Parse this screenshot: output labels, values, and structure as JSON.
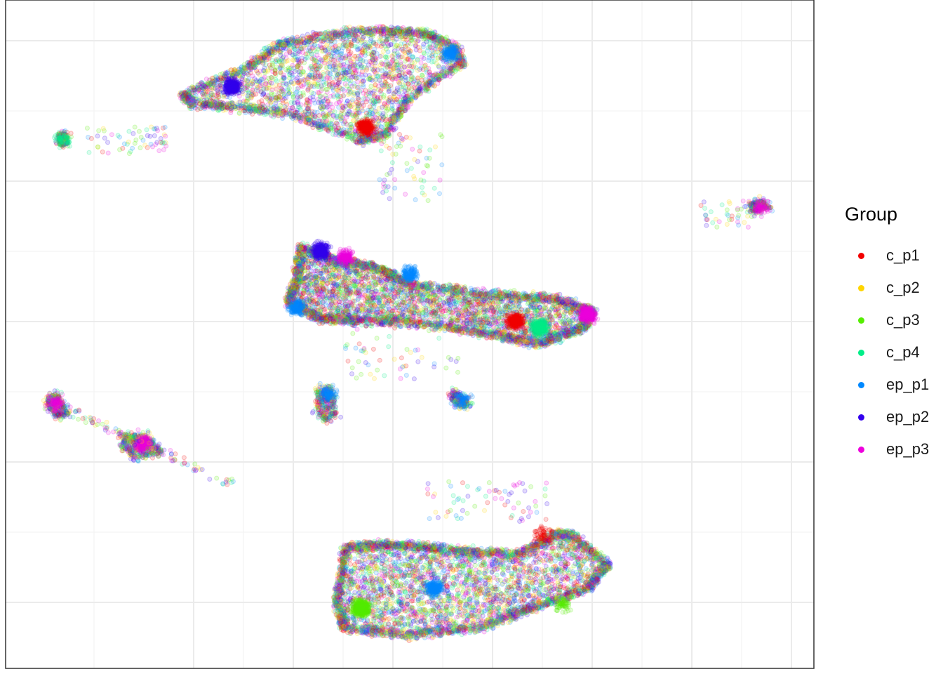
{
  "chart_data": {
    "type": "scatter",
    "title": "",
    "xlabel": "",
    "ylabel": "",
    "grid": true,
    "legend": {
      "title": "Group",
      "placement": "right",
      "items": [
        {
          "label": "c_p1",
          "color": "#f20000"
        },
        {
          "label": "c_p2",
          "color": "#ffd500"
        },
        {
          "label": "c_p3",
          "color": "#55ee00"
        },
        {
          "label": "c_p4",
          "color": "#00ee88"
        },
        {
          "label": "ep_p1",
          "color": "#0088ff"
        },
        {
          "label": "ep_p2",
          "color": "#3300ee"
        },
        {
          "label": "ep_p3",
          "color": "#ee00dd"
        }
      ]
    },
    "xlim": [
      0,
      1
    ],
    "ylim": [
      0,
      1
    ],
    "point_alpha": 0.15,
    "clusters": [
      {
        "id": "top-cluster",
        "poly": [
          [
            0.22,
            0.86
          ],
          [
            0.3,
            0.9
          ],
          [
            0.34,
            0.935
          ],
          [
            0.41,
            0.95
          ],
          [
            0.47,
            0.955
          ],
          [
            0.52,
            0.95
          ],
          [
            0.555,
            0.93
          ],
          [
            0.565,
            0.905
          ],
          [
            0.5,
            0.855
          ],
          [
            0.47,
            0.8
          ],
          [
            0.44,
            0.79
          ],
          [
            0.35,
            0.83
          ],
          [
            0.28,
            0.84
          ],
          [
            0.23,
            0.845
          ]
        ],
        "n": 2000,
        "sub": [
          {
            "x": 0.28,
            "y": 0.87,
            "color": 5,
            "n": 300
          },
          {
            "x": 0.445,
            "y": 0.81,
            "color": 0,
            "n": 250
          },
          {
            "x": 0.55,
            "y": 0.92,
            "color": 4,
            "n": 150
          }
        ]
      },
      {
        "id": "small-left-top",
        "poly": [
          [
            0.065,
            0.8
          ],
          [
            0.075,
            0.8
          ],
          [
            0.077,
            0.785
          ],
          [
            0.067,
            0.782
          ]
        ],
        "n": 120,
        "sub": [
          {
            "x": 0.07,
            "y": 0.79,
            "color": 3,
            "n": 60
          }
        ]
      },
      {
        "id": "small-right",
        "poly": [
          [
            0.92,
            0.695
          ],
          [
            0.935,
            0.7
          ],
          [
            0.945,
            0.69
          ],
          [
            0.925,
            0.682
          ]
        ],
        "n": 180,
        "sub": [
          {
            "x": 0.935,
            "y": 0.69,
            "color": 6,
            "n": 60
          }
        ]
      },
      {
        "id": "middle-cluster",
        "poly": [
          [
            0.365,
            0.63
          ],
          [
            0.41,
            0.61
          ],
          [
            0.46,
            0.6
          ],
          [
            0.5,
            0.575
          ],
          [
            0.6,
            0.56
          ],
          [
            0.68,
            0.553
          ],
          [
            0.725,
            0.535
          ],
          [
            0.715,
            0.51
          ],
          [
            0.66,
            0.485
          ],
          [
            0.6,
            0.5
          ],
          [
            0.5,
            0.518
          ],
          [
            0.43,
            0.52
          ],
          [
            0.385,
            0.525
          ],
          [
            0.35,
            0.55
          ],
          [
            0.36,
            0.58
          ]
        ],
        "n": 2800,
        "sub": [
          {
            "x": 0.39,
            "y": 0.625,
            "color": 5,
            "n": 300
          },
          {
            "x": 0.42,
            "y": 0.615,
            "color": 6,
            "n": 150
          },
          {
            "x": 0.63,
            "y": 0.52,
            "color": 0,
            "n": 250
          },
          {
            "x": 0.66,
            "y": 0.51,
            "color": 3,
            "n": 300
          },
          {
            "x": 0.72,
            "y": 0.53,
            "color": 6,
            "n": 250
          },
          {
            "x": 0.36,
            "y": 0.54,
            "color": 4,
            "n": 150
          },
          {
            "x": 0.5,
            "y": 0.59,
            "color": 4,
            "n": 150
          }
        ]
      },
      {
        "id": "middle-small-a",
        "poly": [
          [
            0.385,
            0.42
          ],
          [
            0.405,
            0.418
          ],
          [
            0.41,
            0.38
          ],
          [
            0.395,
            0.37
          ],
          [
            0.385,
            0.385
          ]
        ],
        "n": 220,
        "sub": [
          {
            "x": 0.398,
            "y": 0.41,
            "color": 4,
            "n": 90
          }
        ]
      },
      {
        "id": "middle-small-b",
        "poly": [
          [
            0.552,
            0.415
          ],
          [
            0.563,
            0.41
          ],
          [
            0.575,
            0.395
          ],
          [
            0.565,
            0.39
          ],
          [
            0.552,
            0.4
          ]
        ],
        "n": 150,
        "sub": [
          {
            "x": 0.565,
            "y": 0.4,
            "color": 4,
            "n": 60
          }
        ]
      },
      {
        "id": "left-cluster-a",
        "poly": [
          [
            0.052,
            0.408
          ],
          [
            0.065,
            0.41
          ],
          [
            0.078,
            0.38
          ],
          [
            0.064,
            0.376
          ],
          [
            0.052,
            0.392
          ]
        ],
        "n": 200,
        "sub": [
          {
            "x": 0.062,
            "y": 0.395,
            "color": 6,
            "n": 80
          }
        ]
      },
      {
        "id": "left-cluster-b",
        "poly": [
          [
            0.145,
            0.352
          ],
          [
            0.175,
            0.348
          ],
          [
            0.195,
            0.322
          ],
          [
            0.16,
            0.315
          ],
          [
            0.145,
            0.33
          ]
        ],
        "n": 320,
        "sub": [
          {
            "x": 0.17,
            "y": 0.335,
            "color": 6,
            "n": 130
          }
        ]
      },
      {
        "id": "bottom-cluster",
        "poly": [
          [
            0.42,
            0.18
          ],
          [
            0.46,
            0.185
          ],
          [
            0.51,
            0.183
          ],
          [
            0.57,
            0.175
          ],
          [
            0.635,
            0.17
          ],
          [
            0.68,
            0.2
          ],
          [
            0.7,
            0.2
          ],
          [
            0.745,
            0.155
          ],
          [
            0.72,
            0.12
          ],
          [
            0.65,
            0.09
          ],
          [
            0.59,
            0.062
          ],
          [
            0.5,
            0.05
          ],
          [
            0.42,
            0.06
          ],
          [
            0.41,
            0.1
          ]
        ],
        "n": 2600,
        "sub": [
          {
            "x": 0.44,
            "y": 0.09,
            "color": 2,
            "n": 400
          },
          {
            "x": 0.665,
            "y": 0.2,
            "color": 0,
            "n": 60
          },
          {
            "x": 0.69,
            "y": 0.095,
            "color": 2,
            "n": 60
          },
          {
            "x": 0.53,
            "y": 0.12,
            "color": 4,
            "n": 200
          }
        ]
      }
    ],
    "trail_points": 400
  }
}
